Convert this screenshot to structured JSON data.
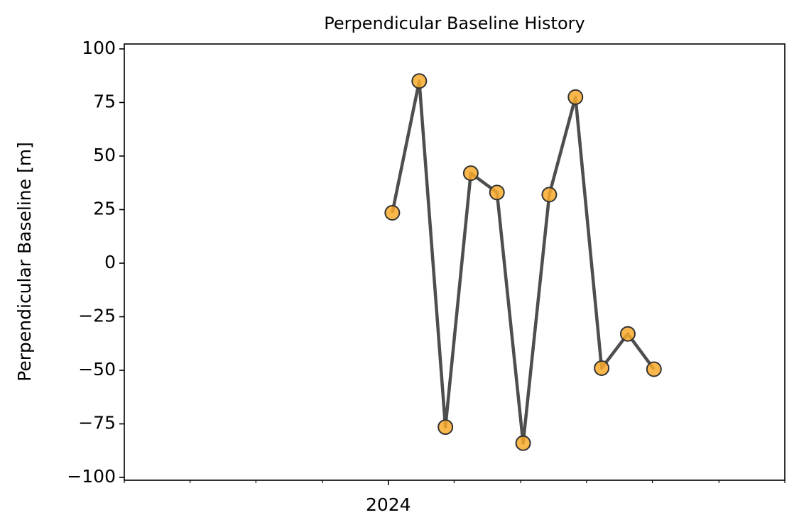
{
  "chart_data": {
    "type": "line",
    "title": "Perpendicular Baseline History",
    "y_label": "Perpendicular Baseline [m]",
    "x": [
      2024.005,
      2024.039,
      2024.072,
      2024.104,
      2024.137,
      2024.17,
      2024.203,
      2024.236,
      2024.269,
      2024.302,
      2024.335
    ],
    "series": [
      {
        "name": "Perpendicular Baseline",
        "color": "#444444",
        "marker_color": "#f9aa2c",
        "values": [
          23.5,
          85,
          -76.5,
          42,
          33,
          -84,
          32,
          77.5,
          -49,
          -33,
          -49.5
        ]
      }
    ],
    "xlim": [
      2023.667,
      2024.5
    ],
    "xticks": [
      2024
    ],
    "xminorticks": [
      2023.667,
      2023.75,
      2023.833,
      2023.917,
      2024.083,
      2024.167,
      2024.25,
      2024.333,
      2024.417,
      2024.5
    ],
    "ylim": [
      -101.3,
      102.3
    ],
    "yticks": [
      100,
      75,
      50,
      25,
      0,
      {
        "value": -25,
        "label": "−25"
      },
      {
        "value": -50,
        "label": "−50"
      },
      {
        "value": -75,
        "label": "−75"
      },
      {
        "value": -100,
        "label": "−100"
      }
    ],
    "grid": false
  }
}
